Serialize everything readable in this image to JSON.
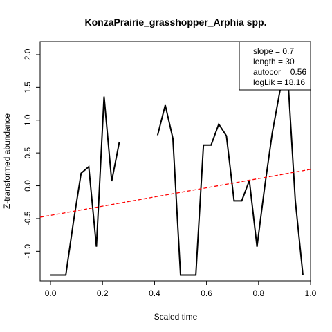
{
  "chart_data": {
    "type": "line",
    "title": "KonzaPrairie_grasshopper_Arphia spp.",
    "xlabel": "Scaled time",
    "ylabel": "Z-transformed abundance",
    "xlim": [
      -0.04,
      1.0
    ],
    "ylim": [
      -1.45,
      2.2
    ],
    "xticks": [
      0.0,
      0.2,
      0.4,
      0.6,
      0.8,
      1.0
    ],
    "xtick_labels": [
      "0.0",
      "0.2",
      "0.4",
      "0.6",
      "0.8",
      "1.0"
    ],
    "yticks": [
      -1.0,
      -0.5,
      0.0,
      0.5,
      1.0,
      1.5,
      2.0
    ],
    "ytick_labels": [
      "-1.0",
      "-0.5",
      "0.0",
      "0.5",
      "1.0",
      "1.5",
      "2.0"
    ],
    "grid": false,
    "series": [
      {
        "style": "solid",
        "color": "#000000",
        "x": [
          0.0,
          0.0588,
          0.0882,
          0.1176,
          0.1471,
          0.1765,
          0.2059,
          0.2353,
          0.2647,
          0.2941,
          0.3235,
          0.3529,
          0.3824,
          0.4118,
          0.4412,
          0.4706,
          0.5,
          0.5294,
          0.5588,
          0.5882,
          0.6176,
          0.6471,
          0.6765,
          0.7059,
          0.7353,
          0.7647,
          0.7941,
          0.8235,
          0.8529,
          0.8824,
          0.9118,
          0.9412,
          0.9706
        ],
        "y": [
          -1.36,
          -1.36,
          -0.55,
          0.19,
          0.29,
          -0.93,
          1.36,
          0.07,
          0.67,
          null,
          null,
          null,
          null,
          0.77,
          1.23,
          0.72,
          -1.36,
          -1.36,
          -1.36,
          0.62,
          0.62,
          0.94,
          0.76,
          -0.23,
          -0.23,
          0.08,
          -0.93,
          -0.02,
          0.81,
          1.45,
          1.71,
          -0.22,
          -1.36
        ]
      },
      {
        "style": "dashed",
        "color": "#ff0000",
        "x": [
          -0.04,
          1.0
        ],
        "y": [
          -0.48,
          0.25
        ]
      }
    ],
    "legend": {
      "position": "top-right",
      "lines": [
        "slope = 0.7",
        "length = 30",
        "autocor = 0.56",
        "logLik = 18.16"
      ]
    }
  }
}
